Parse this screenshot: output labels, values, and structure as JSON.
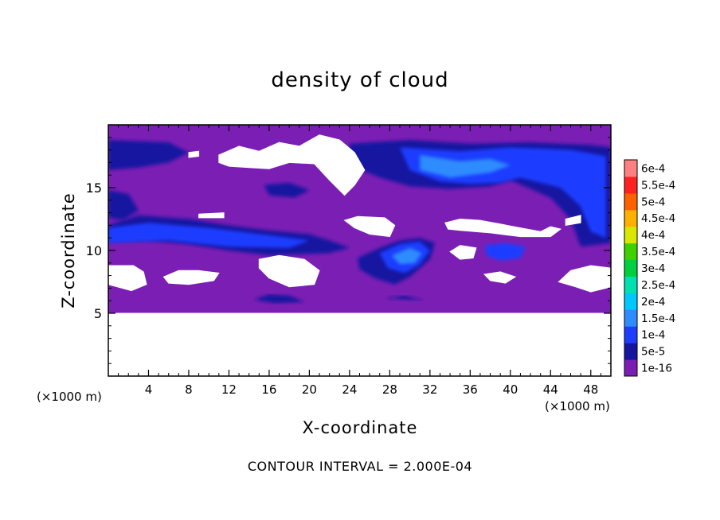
{
  "chart_data": {
    "type": "heatmap",
    "title": "density of cloud",
    "xlabel": "X-coordinate",
    "ylabel": "Z-coordinate",
    "x_unit_label": "(×1000 m)",
    "x_unit_label_right": "(×1000 m)",
    "footer": "CONTOUR INTERVAL = 2.000E-04",
    "xlim": [
      0,
      50
    ],
    "ylim": [
      0,
      20
    ],
    "x_ticks": [
      4,
      8,
      12,
      16,
      20,
      24,
      28,
      32,
      36,
      40,
      44,
      48
    ],
    "y_ticks": [
      5,
      10,
      15
    ],
    "colorbar": {
      "levels": [
        "1e-16",
        "5e-5",
        "1e-4",
        "1.5e-4",
        "2e-4",
        "2.5e-4",
        "3e-4",
        "3.5e-4",
        "4e-4",
        "4.5e-4",
        "5e-4",
        "5.5e-4",
        "6e-4"
      ],
      "colors": [
        "#7b1fb4",
        "#1616a0",
        "#1f3dff",
        "#2f8cff",
        "#00c8ff",
        "#00e0b0",
        "#00d040",
        "#40d000",
        "#d8e800",
        "#ffb000",
        "#ff6000",
        "#ff2020",
        "#ff8080"
      ]
    },
    "fields": {
      "cloud_base_z": 5,
      "background_level": "1e-16",
      "regions": [
        {
          "level": "5e-5",
          "points": [
            [
              0,
              12
            ],
            [
              3,
              12.8
            ],
            [
              8,
              12.5
            ],
            [
              12,
              12
            ],
            [
              16,
              11.6
            ],
            [
              20,
              11.3
            ],
            [
              22,
              10.8
            ],
            [
              24,
              10.2
            ],
            [
              22,
              9.8
            ],
            [
              16,
              9.6
            ],
            [
              12,
              10
            ],
            [
              8,
              10.5
            ],
            [
              4,
              10.8
            ],
            [
              0,
              10.8
            ]
          ]
        },
        {
          "level": "1e-4",
          "points": [
            [
              0,
              11.8
            ],
            [
              4,
              12.2
            ],
            [
              10,
              11.8
            ],
            [
              16,
              11.2
            ],
            [
              20,
              10.8
            ],
            [
              18,
              10.2
            ],
            [
              12,
              10.3
            ],
            [
              6,
              10.8
            ],
            [
              0,
              10.6
            ]
          ]
        },
        {
          "level": "5e-5",
          "points": [
            [
              24,
              18.5
            ],
            [
              30,
              18.8
            ],
            [
              36,
              18.5
            ],
            [
              42,
              18.6
            ],
            [
              48,
              18.4
            ],
            [
              50,
              18.2
            ],
            [
              50,
              10.6
            ],
            [
              47,
              10.3
            ],
            [
              46,
              12.5
            ],
            [
              44,
              14.2
            ],
            [
              40,
              15.6
            ],
            [
              38,
              15.1
            ],
            [
              34,
              14.9
            ],
            [
              30,
              15.1
            ],
            [
              27,
              15.8
            ],
            [
              24,
              16.8
            ]
          ]
        },
        {
          "level": "1e-4",
          "points": [
            [
              29,
              18.2
            ],
            [
              35,
              17.9
            ],
            [
              40,
              18.2
            ],
            [
              46,
              18
            ],
            [
              49.5,
              17.5
            ],
            [
              49.5,
              11
            ],
            [
              48,
              11.5
            ],
            [
              47,
              13.5
            ],
            [
              45,
              15
            ],
            [
              41,
              15.8
            ],
            [
              39,
              15.4
            ],
            [
              36,
              15.3
            ],
            [
              33,
              15.5
            ],
            [
              30,
              16.4
            ]
          ]
        },
        {
          "level": "1.5e-4",
          "points": [
            [
              31,
              17.6
            ],
            [
              35,
              17.1
            ],
            [
              38,
              17.3
            ],
            [
              40,
              16.8
            ],
            [
              38,
              16.2
            ],
            [
              34,
              15.8
            ],
            [
              31,
              16.4
            ]
          ]
        },
        {
          "level": "5e-5",
          "points": [
            [
              24.8,
              9.4
            ],
            [
              27,
              10.2
            ],
            [
              29,
              10.8
            ],
            [
              31,
              11
            ],
            [
              32.5,
              10.6
            ],
            [
              32,
              9.3
            ],
            [
              30,
              7.9
            ],
            [
              28.5,
              7.3
            ],
            [
              26.5,
              7.8
            ],
            [
              25,
              8.5
            ]
          ]
        },
        {
          "level": "1e-4",
          "points": [
            [
              27,
              9.8
            ],
            [
              29,
              10.5
            ],
            [
              31,
              10.7
            ],
            [
              32,
              10
            ],
            [
              31,
              8.9
            ],
            [
              29.5,
              8.2
            ],
            [
              27.8,
              8.6
            ]
          ]
        },
        {
          "level": "1.5e-4",
          "points": [
            [
              28.2,
              9.6
            ],
            [
              30,
              10.2
            ],
            [
              31.2,
              9.8
            ],
            [
              30.5,
              9
            ],
            [
              29,
              8.9
            ]
          ]
        },
        {
          "level": "1e-4",
          "points": [
            [
              37.5,
              10.4
            ],
            [
              39.5,
              10.6
            ],
            [
              41.5,
              10.3
            ],
            [
              41,
              9.4
            ],
            [
              39,
              9.2
            ],
            [
              37.6,
              9.6
            ]
          ]
        },
        {
          "level": "5e-5",
          "points": [
            [
              0,
              18.8
            ],
            [
              6,
              18.6
            ],
            [
              8,
              17.8
            ],
            [
              6,
              17
            ],
            [
              3,
              16.6
            ],
            [
              0,
              16.4
            ]
          ]
        },
        {
          "level": "5e-5",
          "points": [
            [
              0,
              14.8
            ],
            [
              2,
              14.5
            ],
            [
              3,
              13.2
            ],
            [
              1.5,
              12.4
            ],
            [
              0,
              12.6
            ]
          ]
        },
        {
          "level": "5e-5",
          "points": [
            [
              15.5,
              15.2
            ],
            [
              18,
              15.4
            ],
            [
              20,
              14.8
            ],
            [
              18.5,
              14.2
            ],
            [
              16,
              14.4
            ]
          ]
        },
        {
          "level": "5e-5",
          "points": [
            [
              14.5,
              6.1
            ],
            [
              16,
              6.5
            ],
            [
              18,
              6.4
            ],
            [
              19.5,
              5.9
            ],
            [
              16.5,
              5.8
            ]
          ]
        },
        {
          "level": "5e-5",
          "points": [
            [
              27.5,
              6.2
            ],
            [
              29.5,
              6.4
            ],
            [
              31.5,
              6
            ]
          ]
        }
      ],
      "no_cloud": [
        {
          "points": [
            [
              0,
              0
            ],
            [
              50,
              0
            ],
            [
              50,
              5
            ],
            [
              0,
              5
            ]
          ]
        },
        {
          "points": [
            [
              11,
              17.6
            ],
            [
              13,
              18.3
            ],
            [
              15,
              17.9
            ],
            [
              17,
              18.6
            ],
            [
              19,
              18.3
            ],
            [
              21,
              19.2
            ],
            [
              23,
              18.8
            ],
            [
              24.5,
              17.8
            ],
            [
              25.5,
              16.4
            ],
            [
              24.5,
              15.2
            ],
            [
              23.5,
              14.4
            ],
            [
              22,
              15.6
            ],
            [
              20.5,
              16.9
            ],
            [
              18,
              17
            ],
            [
              16,
              16.5
            ],
            [
              14,
              16.6
            ],
            [
              12,
              16.7
            ],
            [
              11,
              17
            ]
          ]
        },
        {
          "points": [
            [
              8,
              17.8
            ],
            [
              9,
              17.9
            ],
            [
              9,
              17.5
            ],
            [
              8,
              17.4
            ]
          ]
        },
        {
          "points": [
            [
              0,
              8.8
            ],
            [
              2.5,
              8.8
            ],
            [
              3.5,
              8.3
            ],
            [
              3.8,
              7.3
            ],
            [
              2.3,
              6.8
            ],
            [
              0,
              7.3
            ]
          ]
        },
        {
          "points": [
            [
              5.5,
              7.9
            ],
            [
              7,
              8.4
            ],
            [
              9,
              8.4
            ],
            [
              11,
              8.2
            ],
            [
              10.5,
              7.6
            ],
            [
              8,
              7.3
            ],
            [
              6,
              7.4
            ]
          ]
        },
        {
          "points": [
            [
              15,
              9.3
            ],
            [
              17,
              9.6
            ],
            [
              19.5,
              9.3
            ],
            [
              21,
              8.4
            ],
            [
              20.5,
              7.3
            ],
            [
              18,
              7.1
            ],
            [
              16,
              7.8
            ],
            [
              15,
              8.6
            ]
          ]
        },
        {
          "points": [
            [
              23.5,
              12.4
            ],
            [
              24.8,
              12.7
            ],
            [
              27.5,
              12.6
            ],
            [
              28.5,
              12
            ],
            [
              28,
              11.1
            ],
            [
              26,
              11.3
            ],
            [
              24.5,
              11.8
            ]
          ]
        },
        {
          "points": [
            [
              33.5,
              12.2
            ],
            [
              35,
              12.5
            ],
            [
              37,
              12.4
            ],
            [
              39,
              12.1
            ],
            [
              41,
              11.8
            ],
            [
              43,
              11.5
            ],
            [
              44,
              11.9
            ],
            [
              45,
              11.7
            ],
            [
              44,
              11.1
            ],
            [
              41,
              11.1
            ],
            [
              38,
              11.4
            ],
            [
              35,
              11.6
            ],
            [
              33.8,
              11.7
            ]
          ]
        },
        {
          "points": [
            [
              34,
              9.9
            ],
            [
              35,
              10.4
            ],
            [
              36.6,
              10.2
            ],
            [
              36.3,
              9.4
            ],
            [
              35,
              9.3
            ]
          ]
        },
        {
          "points": [
            [
              37.4,
              8.1
            ],
            [
              39,
              8.3
            ],
            [
              40.5,
              7.9
            ],
            [
              39.5,
              7.4
            ],
            [
              38,
              7.6
            ]
          ]
        },
        {
          "points": [
            [
              44.8,
              7.5
            ],
            [
              46,
              8.4
            ],
            [
              48,
              8.8
            ],
            [
              50,
              8.6
            ],
            [
              50,
              7.1
            ],
            [
              48,
              6.7
            ],
            [
              46.5,
              7.1
            ]
          ]
        },
        {
          "points": [
            [
              9,
              12.9
            ],
            [
              11.5,
              13
            ],
            [
              11.5,
              12.6
            ],
            [
              9,
              12.6
            ]
          ]
        },
        {
          "points": [
            [
              45.5,
              12.5
            ],
            [
              47,
              12.8
            ],
            [
              47,
              12.2
            ],
            [
              45.5,
              12
            ]
          ]
        }
      ]
    }
  }
}
